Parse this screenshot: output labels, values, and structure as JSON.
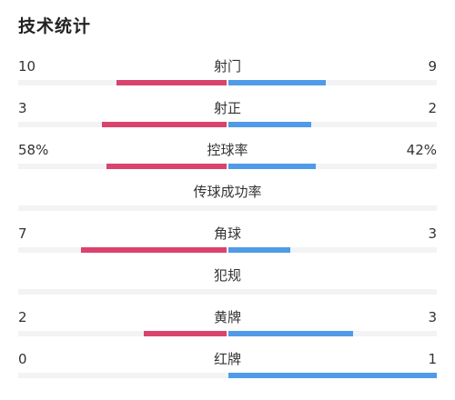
{
  "title": "技术统计",
  "colors": {
    "home": "#d9436e",
    "away": "#4f9be8"
  },
  "stats": [
    {
      "label": "射门",
      "home": "10",
      "away": "9",
      "home_fraction": 0.53,
      "away_fraction": 0.47
    },
    {
      "label": "射正",
      "home": "3",
      "away": "2",
      "home_fraction": 0.6,
      "away_fraction": 0.4
    },
    {
      "label": "控球率",
      "home": "58%",
      "away": "42%",
      "home_fraction": 0.58,
      "away_fraction": 0.42
    },
    {
      "label": "传球成功率",
      "home": "",
      "away": "",
      "home_fraction": 0,
      "away_fraction": 0
    },
    {
      "label": "角球",
      "home": "7",
      "away": "3",
      "home_fraction": 0.7,
      "away_fraction": 0.3
    },
    {
      "label": "犯规",
      "home": "",
      "away": "",
      "home_fraction": 0,
      "away_fraction": 0
    },
    {
      "label": "黄牌",
      "home": "2",
      "away": "3",
      "home_fraction": 0.4,
      "away_fraction": 0.6
    },
    {
      "label": "红牌",
      "home": "0",
      "away": "1",
      "home_fraction": 0,
      "away_fraction": 1.0
    }
  ]
}
